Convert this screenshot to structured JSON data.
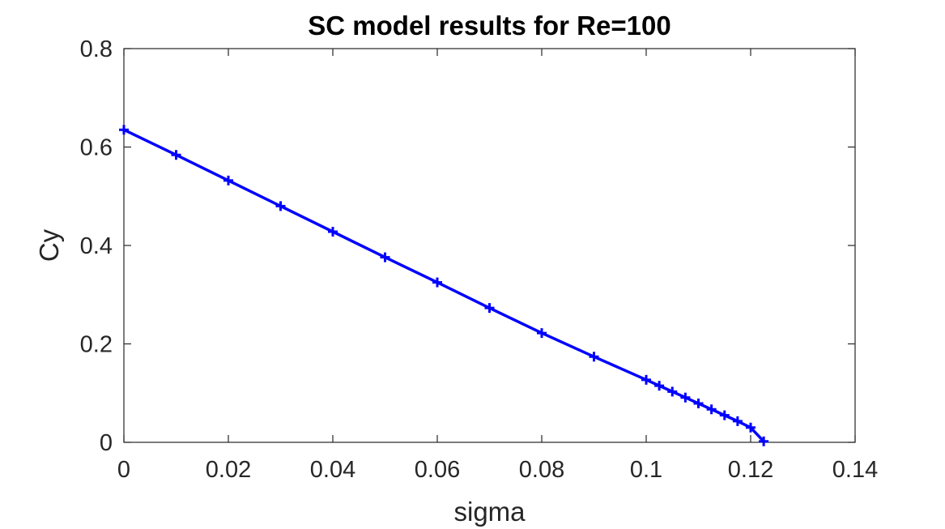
{
  "chart_data": {
    "type": "line",
    "title": "SC model results for Re=100",
    "xlabel": "sigma",
    "ylabel": "Cy",
    "xlim": [
      0,
      0.14
    ],
    "ylim": [
      0,
      0.8
    ],
    "xticks": [
      0,
      0.02,
      0.04,
      0.06,
      0.08,
      0.1,
      0.12,
      0.14
    ],
    "xtick_labels": [
      "0",
      "0.02",
      "0.04",
      "0.06",
      "0.08",
      "0.1",
      "0.12",
      "0.14"
    ],
    "yticks": [
      0,
      0.2,
      0.4,
      0.6,
      0.8
    ],
    "ytick_labels": [
      "0",
      "0.2",
      "0.4",
      "0.6",
      "0.8"
    ],
    "grid": false,
    "legend": "none",
    "box": true,
    "series": [
      {
        "marker": "+",
        "color": "#0000ff",
        "x": [
          0,
          0.01,
          0.02,
          0.03,
          0.04,
          0.05,
          0.06,
          0.07,
          0.08,
          0.09,
          0.1,
          0.1025,
          0.105,
          0.1075,
          0.11,
          0.1125,
          0.115,
          0.1175,
          0.12,
          0.1225
        ],
        "y": [
          0.635,
          0.584,
          0.532,
          0.48,
          0.428,
          0.376,
          0.325,
          0.273,
          0.222,
          0.174,
          0.127,
          0.115,
          0.103,
          0.091,
          0.079,
          0.067,
          0.055,
          0.043,
          0.03,
          0.002
        ]
      }
    ]
  }
}
